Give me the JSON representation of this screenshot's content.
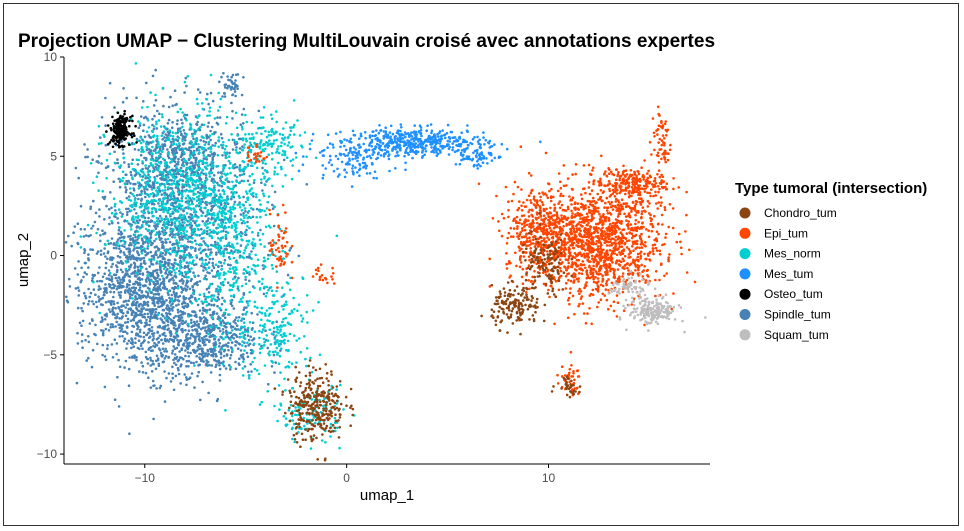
{
  "chart_data": {
    "type": "scatter",
    "title": "Projection UMAP − Clustering MultiLouvain croisé avec annotations expertes",
    "xlabel": "umap_1",
    "ylabel": "umap_2",
    "xlim": [
      -14,
      18
    ],
    "ylim": [
      -10.5,
      10
    ],
    "x_ticks": [
      -10,
      0,
      10
    ],
    "y_ticks": [
      -10,
      -5,
      0,
      5,
      10
    ],
    "x_tick_labels": [
      "−10",
      "0",
      "10"
    ],
    "y_tick_labels": [
      "−10",
      "−5",
      "0",
      "5",
      "10"
    ],
    "grid": false,
    "legend": {
      "title": "Type tumoral (intersection)",
      "position": "right"
    },
    "series": [
      {
        "name": "Spindle_tum",
        "color": "#4682B4",
        "clusters": [
          {
            "cx": -8.6,
            "cy": 1.2,
            "sx": 2.1,
            "sy": 3.0,
            "n": 1500
          },
          {
            "cx": -10.5,
            "cy": -1.8,
            "sx": 1.4,
            "sy": 1.6,
            "n": 700
          },
          {
            "cx": -7.4,
            "cy": -4.2,
            "sx": 1.6,
            "sy": 1.0,
            "n": 600
          },
          {
            "cx": -8.0,
            "cy": 5.0,
            "sx": 1.2,
            "sy": 1.0,
            "n": 300
          },
          {
            "cx": -5.7,
            "cy": 8.5,
            "sx": 0.25,
            "sy": 0.35,
            "n": 40
          }
        ]
      },
      {
        "name": "Mes_norm",
        "color": "#00CED1",
        "clusters": [
          {
            "cx": -8.2,
            "cy": 3.0,
            "sx": 1.8,
            "sy": 2.2,
            "n": 900
          },
          {
            "cx": -5.6,
            "cy": 0.5,
            "sx": 1.2,
            "sy": 2.5,
            "n": 350
          },
          {
            "cx": -3.5,
            "cy": -3.6,
            "sx": 1.0,
            "sy": 1.4,
            "n": 200
          },
          {
            "cx": -1.8,
            "cy": -8.0,
            "sx": 0.8,
            "sy": 0.7,
            "n": 120
          },
          {
            "cx": -3.8,
            "cy": 5.5,
            "sx": 1.0,
            "sy": 0.7,
            "n": 150
          }
        ]
      },
      {
        "name": "Mes_tum",
        "color": "#1E90FF",
        "clusters": [
          {
            "cx": 3.5,
            "cy": 5.7,
            "sx": 1.7,
            "sy": 0.35,
            "n": 450
          },
          {
            "cx": 0.2,
            "cy": 4.9,
            "sx": 1.0,
            "sy": 0.5,
            "n": 120
          },
          {
            "cx": 6.3,
            "cy": 5.0,
            "sx": 0.5,
            "sy": 0.3,
            "n": 60
          }
        ]
      },
      {
        "name": "Epi_tum",
        "color": "#FF4500",
        "clusters": [
          {
            "cx": 12.4,
            "cy": 0.7,
            "sx": 1.6,
            "sy": 1.5,
            "n": 1400
          },
          {
            "cx": 9.6,
            "cy": 1.3,
            "sx": 0.9,
            "sy": 1.1,
            "n": 350
          },
          {
            "cx": 14.2,
            "cy": 3.6,
            "sx": 0.8,
            "sy": 0.4,
            "n": 200
          },
          {
            "cx": 15.6,
            "cy": 5.8,
            "sx": 0.25,
            "sy": 0.8,
            "n": 60
          },
          {
            "cx": 11.0,
            "cy": -6.3,
            "sx": 0.3,
            "sy": 0.4,
            "n": 40
          },
          {
            "cx": -3.3,
            "cy": 0.4,
            "sx": 0.25,
            "sy": 0.9,
            "n": 50
          },
          {
            "cx": -4.5,
            "cy": 5.1,
            "sx": 0.25,
            "sy": 0.3,
            "n": 25
          },
          {
            "cx": -1.2,
            "cy": -1.0,
            "sx": 0.35,
            "sy": 0.25,
            "n": 20
          }
        ]
      },
      {
        "name": "Chondro_tum",
        "color": "#8B4513",
        "clusters": [
          {
            "cx": -1.5,
            "cy": -7.5,
            "sx": 0.7,
            "sy": 0.9,
            "n": 300
          },
          {
            "cx": 8.4,
            "cy": -2.6,
            "sx": 0.6,
            "sy": 0.5,
            "n": 150
          },
          {
            "cx": 9.8,
            "cy": -0.5,
            "sx": 0.6,
            "sy": 0.8,
            "n": 120
          },
          {
            "cx": 11.0,
            "cy": -6.5,
            "sx": 0.3,
            "sy": 0.3,
            "n": 30
          }
        ]
      },
      {
        "name": "Osteo_tum",
        "color": "#000000",
        "clusters": [
          {
            "cx": -11.2,
            "cy": 6.3,
            "sx": 0.25,
            "sy": 0.35,
            "n": 200
          }
        ]
      },
      {
        "name": "Squam_tum",
        "color": "#BEBEBE",
        "clusters": [
          {
            "cx": 15.2,
            "cy": -2.8,
            "sx": 0.6,
            "sy": 0.35,
            "n": 180
          },
          {
            "cx": 14.0,
            "cy": -1.6,
            "sx": 0.5,
            "sy": 0.3,
            "n": 60
          }
        ]
      }
    ]
  }
}
